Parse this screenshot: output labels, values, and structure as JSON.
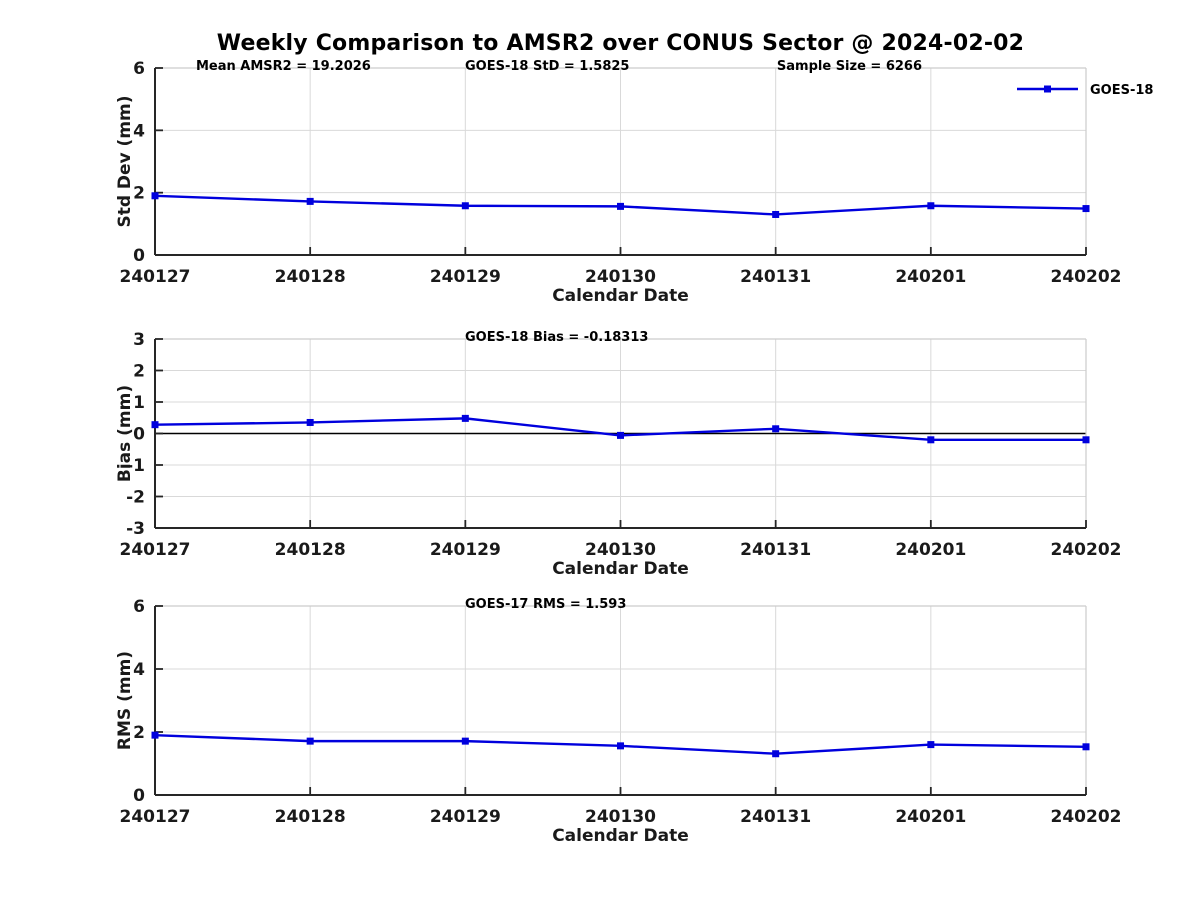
{
  "title": "Weekly Comparison to AMSR2 over CONUS Sector @ 2024-02-02",
  "legend": {
    "label": "GOES-18"
  },
  "colors": {
    "line": "#0000dd",
    "grid": "#d9d9d9",
    "spine_dark": "#262626",
    "spine_light": "#cccccc",
    "text": "#1a1a1a",
    "zero_line": "#000000"
  },
  "chart_data": [
    {
      "type": "line",
      "name": "std-dev",
      "categories": [
        "240127",
        "240128",
        "240129",
        "240130",
        "240131",
        "240201",
        "240202"
      ],
      "series": [
        {
          "name": "GOES-18",
          "values": [
            1.9,
            1.72,
            1.58,
            1.56,
            1.3,
            1.58,
            1.49
          ]
        }
      ],
      "xlabel": "Calendar Date",
      "ylabel": "Std Dev (mm)",
      "ylim": [
        0,
        6
      ],
      "yticks": [
        0,
        2,
        4,
        6
      ],
      "grid": true,
      "legend_visible": true,
      "legend_position": "top-right-outside",
      "annotations": [
        {
          "text": "Mean AMSR2 = 19.2026",
          "xfrac": 0.044
        },
        {
          "text": "GOES-18 StD = 1.5825",
          "xfrac": 0.333
        },
        {
          "text": "Sample Size = 6266",
          "xfrac": 0.668
        }
      ]
    },
    {
      "type": "line",
      "name": "bias",
      "categories": [
        "240127",
        "240128",
        "240129",
        "240130",
        "240131",
        "240201",
        "240202"
      ],
      "series": [
        {
          "name": "GOES-18",
          "values": [
            0.28,
            0.35,
            0.48,
            -0.06,
            0.15,
            -0.2,
            -0.2
          ]
        }
      ],
      "xlabel": "Calendar Date",
      "ylabel": "Bias (mm)",
      "ylim": [
        -3,
        3
      ],
      "yticks": [
        -3,
        -2,
        -1,
        0,
        1,
        2,
        3
      ],
      "grid": true,
      "zero_line": true,
      "legend_visible": false,
      "annotations": [
        {
          "text": "GOES-18 Bias  = -0.18313",
          "xfrac": 0.333
        }
      ]
    },
    {
      "type": "line",
      "name": "rms",
      "categories": [
        "240127",
        "240128",
        "240129",
        "240130",
        "240131",
        "240201",
        "240202"
      ],
      "series": [
        {
          "name": "GOES-18",
          "values": [
            1.9,
            1.71,
            1.71,
            1.56,
            1.31,
            1.6,
            1.53
          ]
        }
      ],
      "xlabel": "Calendar Date",
      "ylabel": "RMS (mm)",
      "ylim": [
        0,
        6
      ],
      "yticks": [
        0,
        2,
        4,
        6
      ],
      "grid": true,
      "legend_visible": false,
      "annotations": [
        {
          "text": "GOES-17 RMS = 1.593",
          "xfrac": 0.333
        }
      ]
    }
  ]
}
